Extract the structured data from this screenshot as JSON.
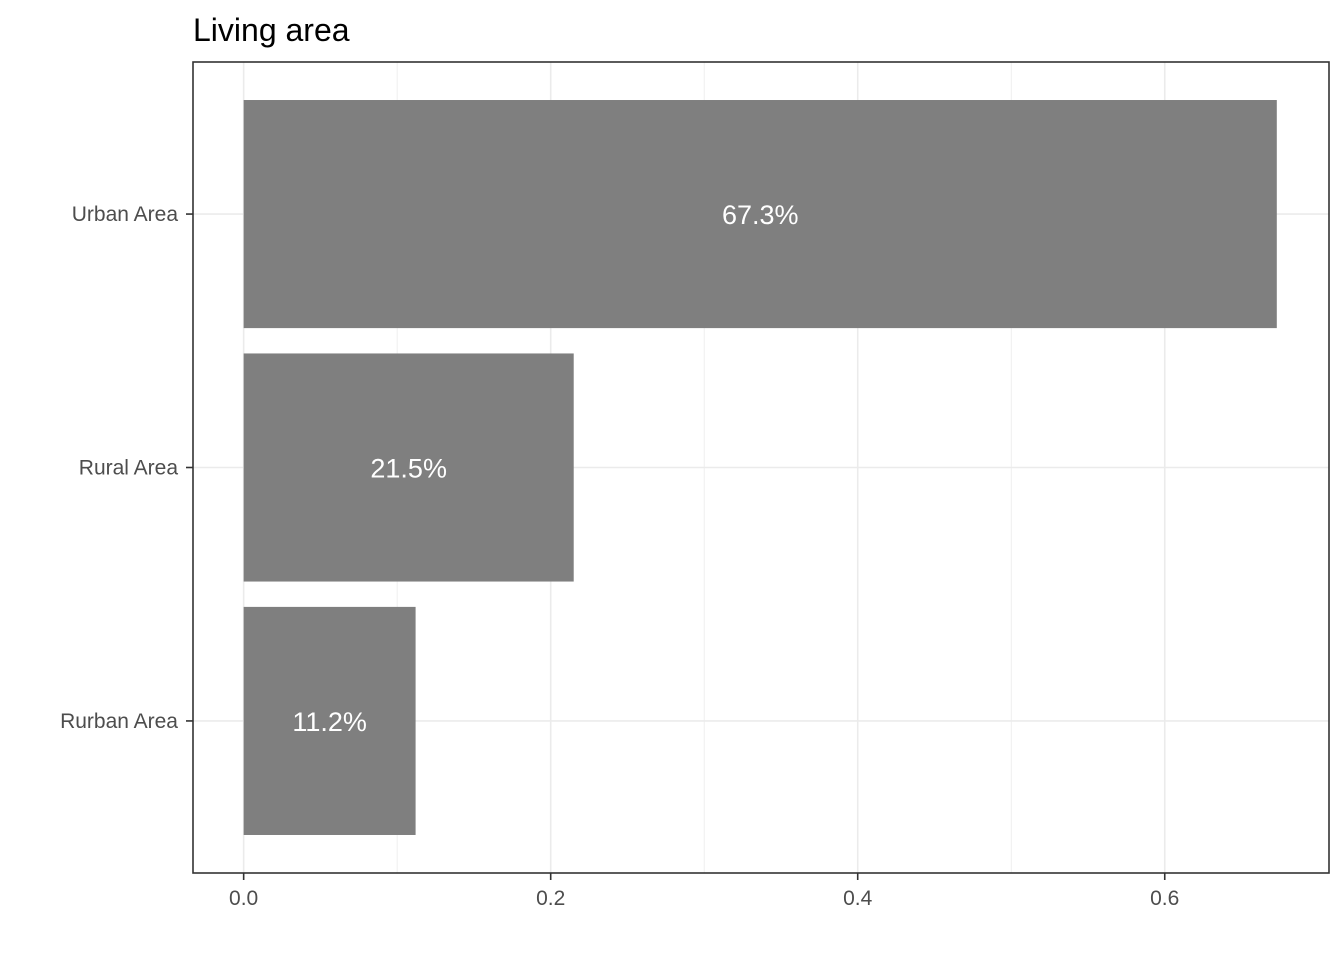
{
  "chart_data": {
    "type": "bar",
    "orientation": "horizontal",
    "title": "Living area",
    "xlabel": "",
    "ylabel": "",
    "categories": [
      "Urban Area",
      "Rural Area",
      "Rurban Area"
    ],
    "values": [
      0.673,
      0.215,
      0.112
    ],
    "data_labels": [
      "67.3%",
      "21.5%",
      "11.2%"
    ],
    "xlim": [
      -0.033,
      0.707
    ],
    "x_ticks": [
      0.0,
      0.2,
      0.4,
      0.6
    ],
    "x_tick_labels": [
      "0.0",
      "0.2",
      "0.4",
      "0.6"
    ],
    "grid": true,
    "legend": "none",
    "colors": {
      "bar": "#7f7f7f",
      "data_label": "#ffffff",
      "grid": "#ebebeb",
      "axis": "#333333",
      "tick_text": "#4d4d4d",
      "title": "#000000",
      "background": "#ffffff"
    }
  }
}
